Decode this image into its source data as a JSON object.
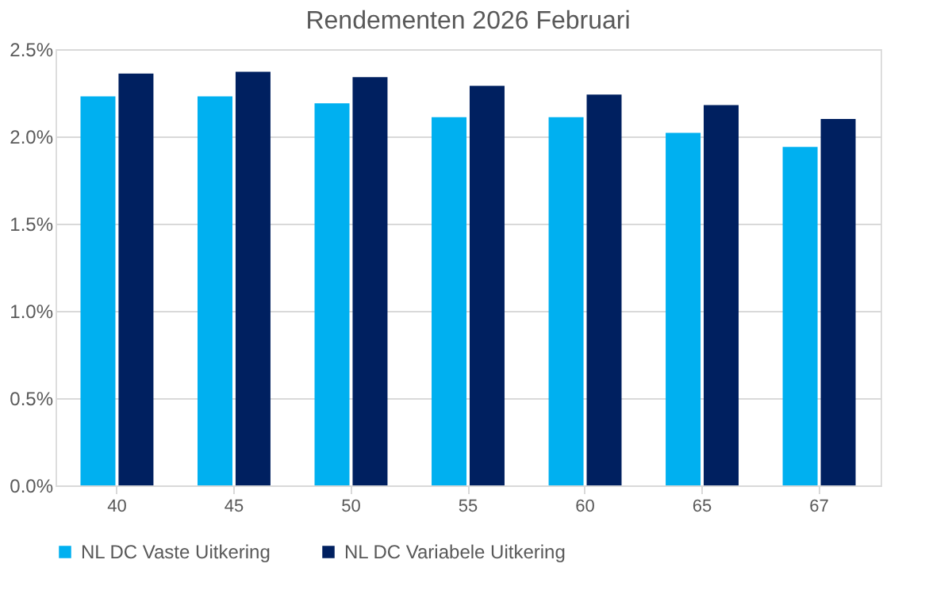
{
  "chart_data": {
    "type": "bar",
    "title": "Rendementen 2026  Februari",
    "categories": [
      "40",
      "45",
      "50",
      "55",
      "60",
      "65",
      "67"
    ],
    "series": [
      {
        "name": "NL DC Vaste Uitkering",
        "color": "#00b0f0",
        "values": [
          2.23,
          2.23,
          2.19,
          2.11,
          2.11,
          2.02,
          1.94
        ]
      },
      {
        "name": "NL DC Variabele Uitkering",
        "color": "#002060",
        "values": [
          2.36,
          2.37,
          2.34,
          2.29,
          2.24,
          2.18,
          2.1
        ]
      }
    ],
    "ylim": [
      0,
      2.5
    ],
    "yticks": [
      {
        "value": 0,
        "label": "0.0%"
      },
      {
        "value": 0.5,
        "label": "0.5%"
      },
      {
        "value": 1.0,
        "label": "1.0%"
      },
      {
        "value": 1.5,
        "label": "1.5%"
      },
      {
        "value": 2.0,
        "label": "2.0%"
      },
      {
        "value": 2.5,
        "label": "2.5%"
      }
    ],
    "grid": "y",
    "legend": "bottom"
  }
}
